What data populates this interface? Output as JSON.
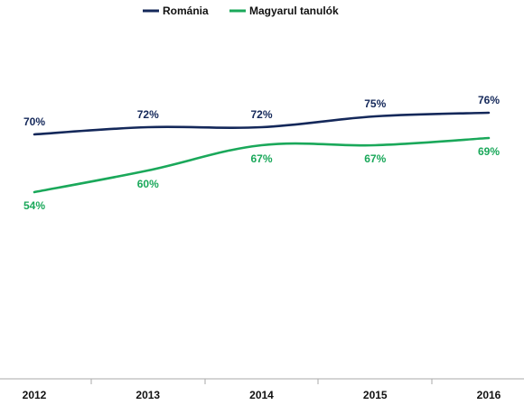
{
  "chart_data": {
    "type": "line",
    "x": [
      "2012",
      "2013",
      "2014",
      "2015",
      "2016"
    ],
    "ylim": [
      0,
      100
    ],
    "grid": false,
    "legend": "top-center",
    "series": [
      {
        "name": "Románia",
        "color": "#14285a",
        "values": [
          70,
          72,
          72,
          75,
          76
        ],
        "labels": [
          "70%",
          "72%",
          "72%",
          "75%",
          "76%"
        ]
      },
      {
        "name": "Magyarul tanulók",
        "color": "#1aa85a",
        "values": [
          54,
          60,
          67,
          67,
          69
        ],
        "labels": [
          "54%",
          "60%",
          "67%",
          "67%",
          "69%"
        ]
      }
    ]
  }
}
